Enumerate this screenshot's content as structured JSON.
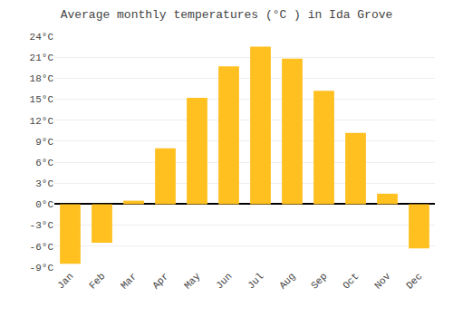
{
  "chart_data": {
    "type": "bar",
    "title": "Average monthly temperatures (°C ) in Ida Grove",
    "categories": [
      "Jan",
      "Feb",
      "Mar",
      "Apr",
      "May",
      "Jun",
      "Jul",
      "Aug",
      "Sep",
      "Oct",
      "Nov",
      "Dec"
    ],
    "values": [
      -8.5,
      -5.5,
      0.5,
      8.0,
      15.2,
      19.7,
      22.5,
      20.8,
      16.2,
      10.2,
      1.5,
      -6.3
    ],
    "color": "#FFC020",
    "ylim": [
      -9,
      24
    ],
    "yticks": [
      {
        "value": -9,
        "label": "-9°C"
      },
      {
        "value": -6,
        "label": "-6°C"
      },
      {
        "value": -3,
        "label": "-3°C"
      },
      {
        "value": 0,
        "label": "0°C"
      },
      {
        "value": 3,
        "label": "3°C"
      },
      {
        "value": 6,
        "label": "6°C"
      },
      {
        "value": 9,
        "label": "9°C"
      },
      {
        "value": 12,
        "label": "12°C"
      },
      {
        "value": 15,
        "label": "15°C"
      },
      {
        "value": 18,
        "label": "18°C"
      },
      {
        "value": 21,
        "label": "21°C"
      },
      {
        "value": 24,
        "label": "24°C"
      }
    ],
    "grid": true
  }
}
